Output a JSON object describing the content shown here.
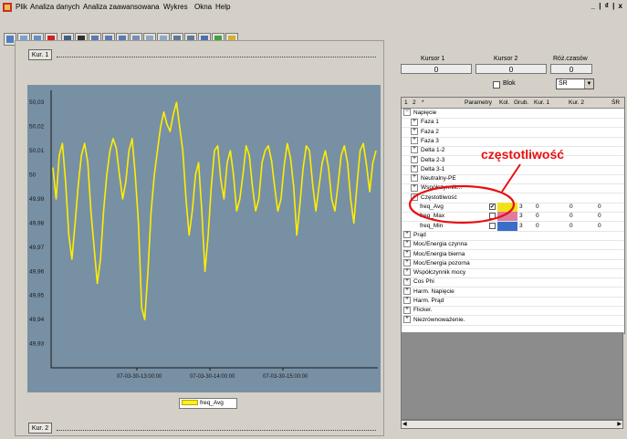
{
  "menu": {
    "items": [
      "Plik",
      "Analiza danych",
      "Analiza zaawansowana",
      "Wykres",
      "Okna",
      "Help"
    ],
    "window_controls": "_ | ₫ | x"
  },
  "cursor_panel": {
    "kur1_label": "Kur. 1",
    "kur2_label": "Kur. 2",
    "headers": [
      "Kursor 1",
      "Kursor 2",
      "Róż.czasów"
    ],
    "values": [
      "0",
      "0",
      "0"
    ],
    "blok_label": "Blok",
    "mode_value": "ŚR"
  },
  "tree": {
    "headers": [
      "1",
      "2",
      "*",
      "Parametry",
      "Kol.",
      "Grub.",
      "Kur. 1",
      "Kur. 2",
      "ŚR"
    ],
    "rows": [
      {
        "label": "Napięcie",
        "exp": "−"
      },
      {
        "label": "Faza 1",
        "exp": "+"
      },
      {
        "label": "Faza 2",
        "exp": "+"
      },
      {
        "label": "Faza 3",
        "exp": "+"
      },
      {
        "label": "Delta 1-2",
        "exp": "+"
      },
      {
        "label": "Delta 2-3",
        "exp": "+"
      },
      {
        "label": "Delta 3-1",
        "exp": "+"
      },
      {
        "label": "Neutralny-PE",
        "exp": "+"
      },
      {
        "label": "Współczynnik...",
        "exp": "+"
      },
      {
        "label": "Częstotliwość",
        "exp": "−"
      },
      {
        "label": "freq_Avg",
        "grub": "3",
        "kur1": "0",
        "kur2": "0",
        "sr": "0"
      },
      {
        "label": "freq_Max",
        "grub": "3",
        "kur1": "0",
        "kur2": "0",
        "sr": "0"
      },
      {
        "label": "freq_Min",
        "grub": "3",
        "kur1": "0",
        "kur2": "0",
        "sr": "0"
      },
      {
        "label": "Prąd",
        "exp": "+"
      },
      {
        "label": "Moc/Energia czynna",
        "exp": "+"
      },
      {
        "label": "Moc/Energia bierna",
        "exp": "+"
      },
      {
        "label": "Moc/Energia pozorna",
        "exp": "+"
      },
      {
        "label": "Współczynnik mocy",
        "exp": "+"
      },
      {
        "label": "Cos Phi",
        "exp": "+"
      },
      {
        "label": "Harm. Napięcie",
        "exp": "+"
      },
      {
        "label": "Harm. Prąd",
        "exp": "+"
      },
      {
        "label": "Flicker.",
        "exp": "+"
      },
      {
        "label": "Niezrównoważenie.",
        "exp": "+"
      }
    ],
    "freq_colors": [
      "#f2e01a",
      "#e07aa0",
      "#3a6ec8"
    ]
  },
  "annotation": "częstotliwość",
  "chart_data": {
    "type": "line",
    "ytick_labels": [
      "50,03",
      "50,02",
      "50,01",
      "50",
      "49,99",
      "49,98",
      "49,97",
      "49,96",
      "49,95",
      "49,94",
      "49,93"
    ],
    "xtick_labels": [
      "07-03-30-13:00:00",
      "07-03-30-14:00:00",
      "07-03-30-15:00:00"
    ],
    "ylim": [
      49.92,
      50.035
    ],
    "series": [
      {
        "name": "freq_Avg",
        "color": "#ffee00",
        "values": [
          50.003,
          49.99,
          50.008,
          50.013,
          49.997,
          49.975,
          49.965,
          49.98,
          49.996,
          50.008,
          50.013,
          50.005,
          49.985,
          49.97,
          49.955,
          49.965,
          49.985,
          50.0,
          50.01,
          50.015,
          50.011,
          50.0,
          49.99,
          49.997,
          50.01,
          50.015,
          50.0,
          49.98,
          49.945,
          49.94,
          49.96,
          49.985,
          50.0,
          50.01,
          50.02,
          50.026,
          50.021,
          50.018,
          50.025,
          50.03,
          50.02,
          50.01,
          49.99,
          49.975,
          49.985,
          50.0,
          50.005,
          49.985,
          49.96,
          49.975,
          49.995,
          50.01,
          50.012,
          49.998,
          49.99,
          50.005,
          50.01,
          50.0,
          49.985,
          49.99,
          50.0,
          50.012,
          50.008,
          49.995,
          49.985,
          49.99,
          50.005,
          50.01,
          50.012,
          50.006,
          49.995,
          49.985,
          49.99,
          50.004,
          50.013,
          50.007,
          49.995,
          49.975,
          49.988,
          50.003,
          50.012,
          50.01,
          49.996,
          49.985,
          49.995,
          50.005,
          50.01,
          50.003,
          49.99,
          49.985,
          49.996,
          50.008,
          50.012,
          50.005,
          49.99,
          49.98,
          49.996,
          50.01,
          50.013,
          50.004,
          49.993,
          50.005,
          50.01
        ]
      }
    ]
  }
}
